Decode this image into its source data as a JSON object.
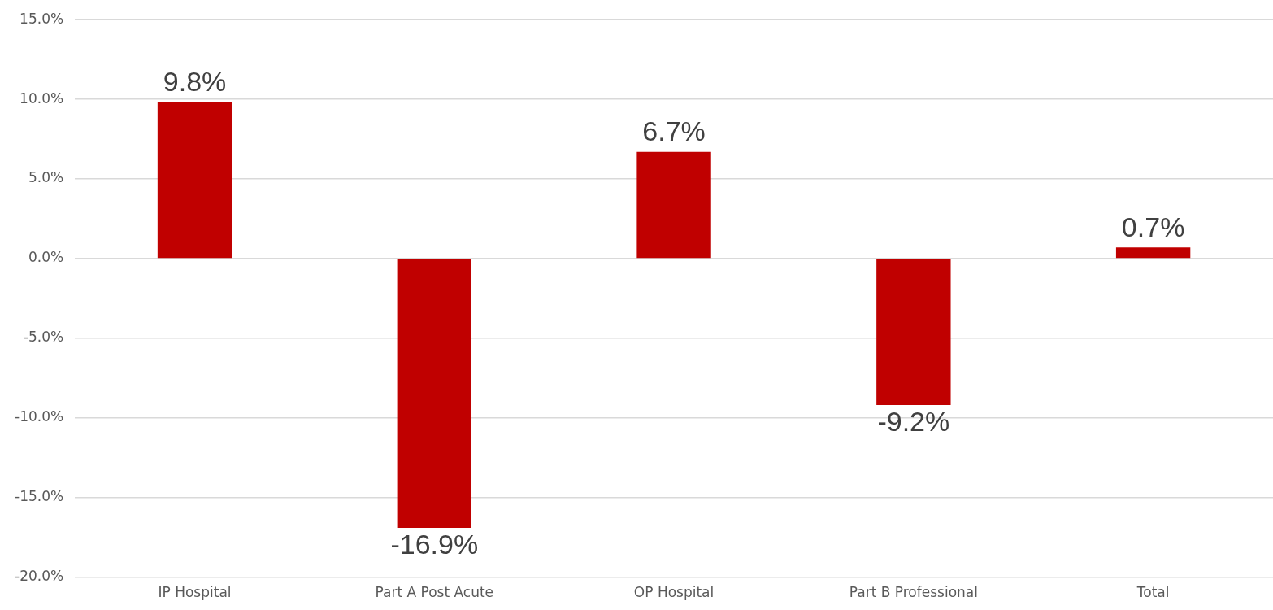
{
  "chart_data": {
    "type": "bar",
    "categories": [
      "IP Hospital",
      "Part A Post Acute",
      "OP Hospital",
      "Part B Professional",
      "Total"
    ],
    "values": [
      9.8,
      -16.9,
      6.7,
      -9.2,
      0.7
    ],
    "value_labels": [
      "9.8%",
      "-16.9%",
      "6.7%",
      "-9.2%",
      "0.7%"
    ],
    "color": "#c00000",
    "ylim": [
      -20,
      15
    ],
    "yticks": [
      {
        "value": -20,
        "label": "-20.0%"
      },
      {
        "value": -15,
        "label": "-15.0%"
      },
      {
        "value": -10,
        "label": "-10.0%"
      },
      {
        "value": -5,
        "label": "-5.0%"
      },
      {
        "value": 0,
        "label": "0.0%"
      },
      {
        "value": 5,
        "label": "5.0%"
      },
      {
        "value": 10,
        "label": "10.0%"
      },
      {
        "value": 15,
        "label": "15.0%"
      }
    ],
    "grid": "y",
    "legend": false
  }
}
